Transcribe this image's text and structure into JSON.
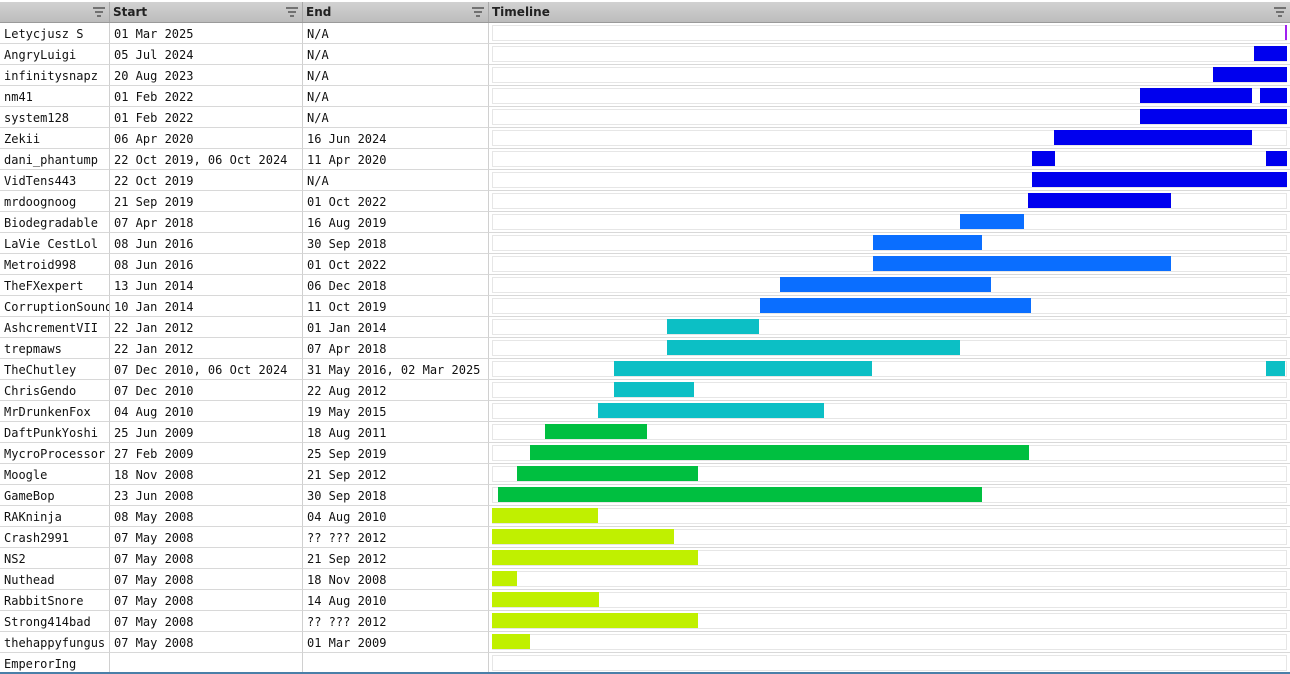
{
  "table": {
    "columns": [
      "",
      "Start",
      "End",
      "Timeline"
    ],
    "timeline_range": [
      "2008-05-07",
      "2025-03-15"
    ],
    "rows": [
      {
        "name": "Letycjusz S",
        "start": "01 Mar 2025",
        "end": "N/A",
        "color": "#a020f0",
        "spans": [
          [
            "2025-03-01",
            "2025-03-20"
          ]
        ]
      },
      {
        "name": "AngryLuigi",
        "start": "05 Jul 2024",
        "end": "N/A",
        "color": "#0000ee",
        "spans": [
          [
            "2024-07-05",
            "2025-03-20"
          ]
        ]
      },
      {
        "name": "infinitysnapz",
        "start": "20 Aug 2023",
        "end": "N/A",
        "color": "#0000ee",
        "spans": [
          [
            "2023-08-20",
            "2025-03-20"
          ]
        ]
      },
      {
        "name": "nm41",
        "start": "01 Feb 2022",
        "end": "N/A",
        "color": "#0000ee",
        "spans": [
          [
            "2022-02-01",
            "2024-06-16"
          ],
          [
            "2024-08-15",
            "2025-03-20"
          ]
        ]
      },
      {
        "name": "system128",
        "start": "01 Feb 2022",
        "end": "N/A",
        "color": "#0000ee",
        "spans": [
          [
            "2022-02-01",
            "2025-03-20"
          ]
        ]
      },
      {
        "name": "Zekii",
        "start": "06 Apr 2020",
        "end": "16 Jun 2024",
        "color": "#0000ee",
        "spans": [
          [
            "2020-04-06",
            "2024-06-16"
          ]
        ]
      },
      {
        "name": "dani_phantump",
        "start": "22 Oct 2019, 06 Oct 2024",
        "end": "11 Apr 2020",
        "color": "#0000ee",
        "spans": [
          [
            "2019-10-22",
            "2020-04-11"
          ],
          [
            "2024-10-06",
            "2025-03-20"
          ]
        ]
      },
      {
        "name": "VidTens443",
        "start": "22 Oct 2019",
        "end": "N/A",
        "color": "#0000ee",
        "spans": [
          [
            "2019-10-22",
            "2025-03-20"
          ]
        ]
      },
      {
        "name": "mrdoognoog",
        "start": "21 Sep 2019",
        "end": "01 Oct 2022",
        "color": "#0000ee",
        "spans": [
          [
            "2019-09-21",
            "2022-10-01"
          ]
        ]
      },
      {
        "name": "Biodegradable",
        "start": "07 Apr 2018",
        "end": "16 Aug 2019",
        "color": "#0a6eff",
        "spans": [
          [
            "2018-04-07",
            "2019-08-16"
          ]
        ]
      },
      {
        "name": "LaVie CestLol",
        "start": "08 Jun 2016",
        "end": "30 Sep 2018",
        "color": "#0a6eff",
        "spans": [
          [
            "2016-06-08",
            "2018-09-30"
          ]
        ]
      },
      {
        "name": "Metroid998",
        "start": "08 Jun 2016",
        "end": "01 Oct 2022",
        "color": "#0a6eff",
        "spans": [
          [
            "2016-06-08",
            "2022-10-01"
          ]
        ]
      },
      {
        "name": "TheFXexpert",
        "start": "13 Jun 2014",
        "end": "06 Dec 2018",
        "color": "#0a6eff",
        "spans": [
          [
            "2014-06-13",
            "2018-12-06"
          ]
        ]
      },
      {
        "name": "CorruptionSound",
        "start": "10 Jan 2014",
        "end": "11 Oct 2019",
        "color": "#0a6eff",
        "spans": [
          [
            "2014-01-10",
            "2019-10-11"
          ]
        ]
      },
      {
        "name": "AshcrementVII",
        "start": "22 Jan 2012",
        "end": "01 Jan 2014",
        "color": "#0cbfc5",
        "spans": [
          [
            "2012-01-22",
            "2014-01-01"
          ]
        ]
      },
      {
        "name": "trepmaws",
        "start": "22 Jan 2012",
        "end": "07 Apr 2018",
        "color": "#0cbfc5",
        "spans": [
          [
            "2012-01-22",
            "2018-04-07"
          ]
        ]
      },
      {
        "name": "TheChutley",
        "start": "07 Dec 2010, 06 Oct 2024",
        "end": "31 May 2016, 02 Mar 2025",
        "color": "#0cbfc5",
        "spans": [
          [
            "2010-12-07",
            "2016-05-31"
          ],
          [
            "2024-10-06",
            "2025-03-02"
          ]
        ]
      },
      {
        "name": "ChrisGendo",
        "start": "07 Dec 2010",
        "end": "22 Aug 2012",
        "color": "#0cbfc5",
        "spans": [
          [
            "2010-12-07",
            "2012-08-22"
          ]
        ]
      },
      {
        "name": "MrDrunkenFox",
        "start": "04 Aug 2010",
        "end": "19 May 2015",
        "color": "#0cbfc5",
        "spans": [
          [
            "2010-08-04",
            "2015-05-19"
          ]
        ]
      },
      {
        "name": "DaftPunkYoshi",
        "start": "25 Jun 2009",
        "end": "18 Aug 2011",
        "color": "#00bf40",
        "spans": [
          [
            "2009-06-25",
            "2011-08-18"
          ]
        ]
      },
      {
        "name": "MycroProcessor",
        "start": "27 Feb 2009",
        "end": "25 Sep 2019",
        "color": "#00bf40",
        "spans": [
          [
            "2009-02-27",
            "2019-09-25"
          ]
        ]
      },
      {
        "name": "Moogle",
        "start": "18 Nov 2008",
        "end": "21 Sep 2012",
        "color": "#00bf40",
        "spans": [
          [
            "2008-11-18",
            "2012-09-21"
          ]
        ]
      },
      {
        "name": "GameBop",
        "start": "23 Jun 2008",
        "end": "30 Sep 2018",
        "color": "#00bf40",
        "spans": [
          [
            "2008-06-23",
            "2018-09-30"
          ]
        ]
      },
      {
        "name": "RAKninja",
        "start": "08 May 2008",
        "end": "04 Aug 2010",
        "color": "#c0f000",
        "spans": [
          [
            "2008-05-08",
            "2010-08-04"
          ]
        ]
      },
      {
        "name": "Crash2991",
        "start": "07 May 2008",
        "end": "?? ??? 2012",
        "color": "#c0f000",
        "spans": [
          [
            "2008-05-07",
            "2012-03-15"
          ]
        ]
      },
      {
        "name": "NS2",
        "start": "07 May 2008",
        "end": "21 Sep 2012",
        "color": "#c0f000",
        "spans": [
          [
            "2008-05-07",
            "2012-09-21"
          ]
        ]
      },
      {
        "name": "Nuthead",
        "start": "07 May 2008",
        "end": "18 Nov 2008",
        "color": "#c0f000",
        "spans": [
          [
            "2008-05-07",
            "2008-11-18"
          ]
        ]
      },
      {
        "name": "RabbitSnore",
        "start": "07 May 2008",
        "end": "14 Aug 2010",
        "color": "#c0f000",
        "spans": [
          [
            "2008-05-07",
            "2010-08-14"
          ]
        ]
      },
      {
        "name": "Strong414bad",
        "start": "07 May 2008",
        "end": "?? ??? 2012",
        "color": "#c0f000",
        "spans": [
          [
            "2008-05-07",
            "2012-09-21"
          ]
        ]
      },
      {
        "name": "thehappyfungus",
        "start": "07 May 2008",
        "end": "01 Mar 2009",
        "color": "#c0f000",
        "spans": [
          [
            "2008-05-07",
            "2009-03-01"
          ]
        ]
      },
      {
        "name": "EmperorIng",
        "start": "",
        "end": "",
        "color": "#ffffff",
        "spans": []
      }
    ]
  }
}
